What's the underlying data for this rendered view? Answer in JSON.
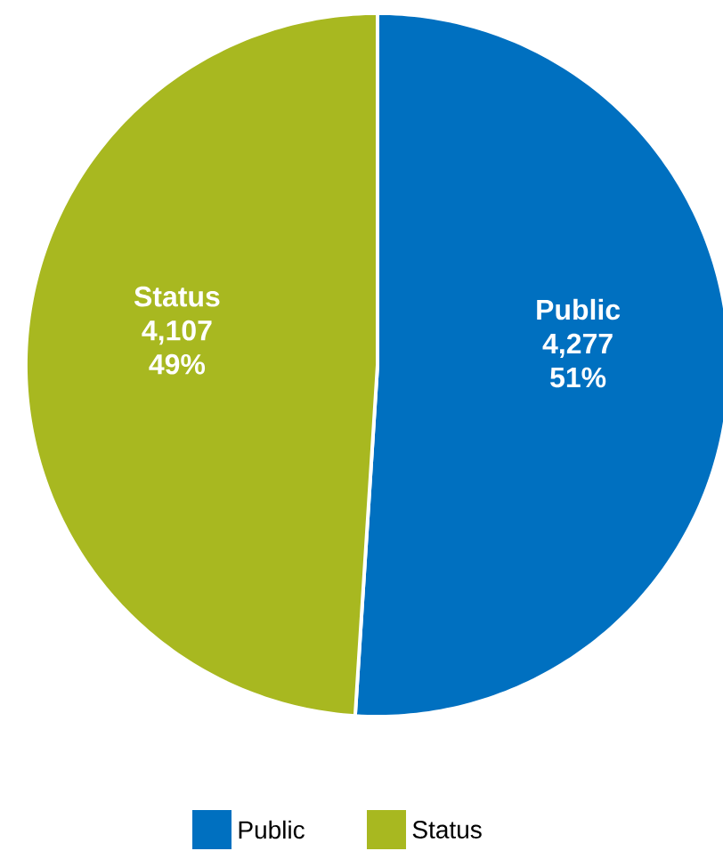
{
  "chart_data": {
    "type": "pie",
    "categories": [
      "Public",
      "Status"
    ],
    "values": [
      4277,
      4107
    ],
    "colors": [
      "#0070c0",
      "#a8b820"
    ],
    "value_labels": [
      "4,277",
      "4,107"
    ],
    "annotations": [
      {
        "text": "51%",
        "x": "Public"
      },
      {
        "text": "49%",
        "x": "Status"
      }
    ],
    "legend": "bottom"
  }
}
